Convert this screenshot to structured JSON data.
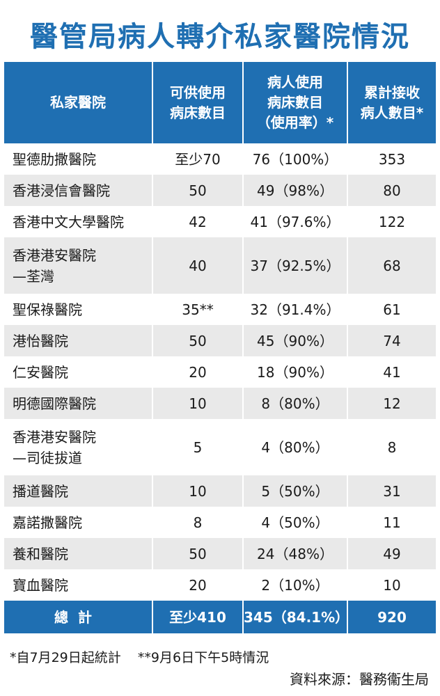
{
  "title": "醫管局病人轉介私家醫院情況",
  "table": {
    "headers": [
      "私家醫院",
      "可供使用\n病床數目",
      "病人使用\n病床數目\n（使用率）*",
      "累計接收\n病人數目*"
    ],
    "rows": [
      {
        "name": "聖德肋撒醫院",
        "beds": "至少70",
        "used": "76（100%）",
        "patients": "353"
      },
      {
        "name": "香港浸信會醫院",
        "beds": "50",
        "used": "49（98%）",
        "patients": "80"
      },
      {
        "name": "香港中文大學醫院",
        "beds": "42",
        "used": "41（97.6%）",
        "patients": "122"
      },
      {
        "name": "香港港安醫院\n—荃灣",
        "beds": "40",
        "used": "37（92.5%）",
        "patients": "68"
      },
      {
        "name": "聖保祿醫院",
        "beds": "35**",
        "used": "32（91.4%）",
        "patients": "61"
      },
      {
        "name": "港怡醫院",
        "beds": "50",
        "used": "45（90%）",
        "patients": "74"
      },
      {
        "name": "仁安醫院",
        "beds": "20",
        "used": "18（90%）",
        "patients": "41"
      },
      {
        "name": "明德國際醫院",
        "beds": "10",
        "used": "8（80%）",
        "patients": "12"
      },
      {
        "name": "香港港安醫院\n—司徒拔道",
        "beds": "5",
        "used": "4（80%）",
        "patients": "8"
      },
      {
        "name": "播道醫院",
        "beds": "10",
        "used": "5（50%）",
        "patients": "31"
      },
      {
        "name": "嘉諾撒醫院",
        "beds": "8",
        "used": "4（50%）",
        "patients": "11"
      },
      {
        "name": "養和醫院",
        "beds": "50",
        "used": "24（48%）",
        "patients": "49"
      },
      {
        "name": "寶血醫院",
        "beds": "20",
        "used": "2（10%）",
        "patients": "10"
      }
    ],
    "total": {
      "name": "總計",
      "beds": "至少410",
      "used": "345（84.1%）",
      "patients": "920"
    }
  },
  "footnotes": "*自7月29日起統計    **9月6日下午5時情況",
  "source": "資料來源：醫務衞生局",
  "colors": {
    "header_blue": "#1f6fb2",
    "stripe_gray": "#e9e9e9"
  }
}
